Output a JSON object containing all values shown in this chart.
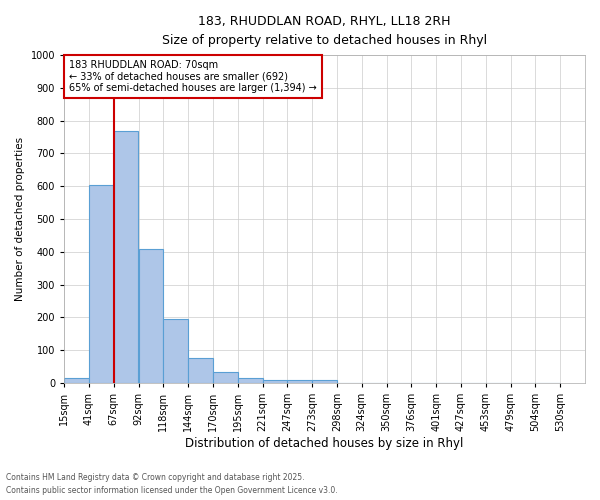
{
  "title_line1": "183, RHUDDLAN ROAD, RHYL, LL18 2RH",
  "title_line2": "Size of property relative to detached houses in Rhyl",
  "xlabel": "Distribution of detached houses by size in Rhyl",
  "ylabel": "Number of detached properties",
  "annotation_title": "183 RHUDDLAN ROAD: 70sqm",
  "annotation_line2": "← 33% of detached houses are smaller (692)",
  "annotation_line3": "65% of semi-detached houses are larger (1,394) →",
  "footer_line1": "Contains HM Land Registry data © Crown copyright and database right 2025.",
  "footer_line2": "Contains public sector information licensed under the Open Government Licence v3.0.",
  "bins": [
    "15sqm",
    "41sqm",
    "67sqm",
    "92sqm",
    "118sqm",
    "144sqm",
    "170sqm",
    "195sqm",
    "221sqm",
    "247sqm",
    "273sqm",
    "298sqm",
    "324sqm",
    "350sqm",
    "376sqm",
    "401sqm",
    "427sqm",
    "453sqm",
    "479sqm",
    "504sqm",
    "530sqm"
  ],
  "values": [
    15,
    605,
    770,
    410,
    195,
    75,
    35,
    15,
    10,
    8,
    10,
    0,
    0,
    0,
    0,
    0,
    0,
    0,
    0,
    0
  ],
  "bar_color": "#aec6e8",
  "bar_edge_color": "#5a9fd4",
  "red_line_bin_idx": 2,
  "ylim": [
    0,
    1000
  ],
  "yticks": [
    0,
    100,
    200,
    300,
    400,
    500,
    600,
    700,
    800,
    900,
    1000
  ],
  "red_line_color": "#cc0000",
  "annotation_box_color": "#cc0000",
  "background_color": "#ffffff",
  "grid_color": "#cccccc"
}
